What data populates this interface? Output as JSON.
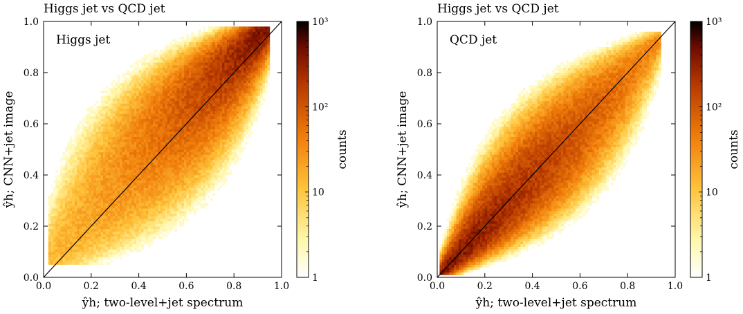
{
  "chart_data": [
    {
      "type": "heatmap",
      "title": "Higgs jet vs QCD jet",
      "annotation": "Higgs jet",
      "xlabel": "ŷh; two-level+jet spectrum",
      "ylabel": "ŷh; CNN+jet image",
      "xlim": [
        0.0,
        1.0
      ],
      "ylim": [
        0.0,
        1.0
      ],
      "xticks": [
        "0.0",
        "0.2",
        "0.4",
        "0.6",
        "0.8",
        "1.0"
      ],
      "yticks": [
        "0.0",
        "0.2",
        "0.4",
        "0.6",
        "0.8",
        "1.0"
      ],
      "reference_line": {
        "from": [
          0.0,
          0.0
        ],
        "to": [
          1.0,
          1.0
        ]
      },
      "density_model": {
        "shape": "elliptical band along diagonal",
        "peak": [
          0.85,
          0.9
        ],
        "x_range": [
          0.02,
          0.95
        ],
        "y_range": [
          0.05,
          0.97
        ]
      },
      "colorbar": {
        "label": "counts",
        "scale": "log",
        "range": [
          1,
          1000
        ],
        "ticks": [
          {
            "value": 1,
            "label": "1"
          },
          {
            "value": 10,
            "label": "10"
          },
          {
            "value": 100,
            "label": "10²"
          },
          {
            "value": 1000,
            "label": "10³"
          }
        ],
        "colormap": "afmhot_r"
      }
    },
    {
      "type": "heatmap",
      "title": "Higgs jet vs QCD jet",
      "annotation": "QCD jet",
      "xlabel": "ŷh; two-level+jet spectrum",
      "ylabel": "ŷh; CNN+jet image",
      "xlim": [
        0.0,
        1.0
      ],
      "ylim": [
        0.0,
        1.0
      ],
      "xticks": [
        "0.0",
        "0.2",
        "0.4",
        "0.6",
        "0.8",
        "1.0"
      ],
      "yticks": [
        "0.0",
        "0.2",
        "0.4",
        "0.6",
        "0.8",
        "1.0"
      ],
      "reference_line": {
        "from": [
          0.0,
          0.0
        ],
        "to": [
          1.0,
          1.0
        ]
      },
      "density_model": {
        "shape": "elliptical band along diagonal",
        "peak": [
          0.1,
          0.1
        ],
        "x_range": [
          0.02,
          0.93
        ],
        "y_range": [
          0.02,
          0.95
        ]
      },
      "colorbar": {
        "label": "counts",
        "scale": "log",
        "range": [
          1,
          1000
        ],
        "ticks": [
          {
            "value": 1,
            "label": "1"
          },
          {
            "value": 10,
            "label": "10"
          },
          {
            "value": 100,
            "label": "10²"
          },
          {
            "value": 1000,
            "label": "10³"
          }
        ],
        "colormap": "afmhot_r"
      }
    }
  ]
}
